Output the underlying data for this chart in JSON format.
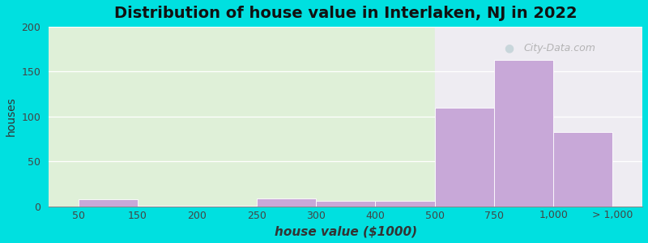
{
  "title": "Distribution of house value in Interlaken, NJ in 2022",
  "xlabel": "house value ($1000)",
  "ylabel": "houses",
  "tick_labels": [
    "50",
    "150",
    "200",
    "250",
    "300",
    "400",
    "500",
    "750",
    "1,000",
    "> 1,000"
  ],
  "bar_values": [
    8,
    1,
    1,
    9,
    6,
    6,
    110,
    163,
    83
  ],
  "bar_color": "#c8a8d8",
  "background_color": "#00e0e0",
  "plot_bg_left": "#dff0d8",
  "plot_bg_right": "#eeecf2",
  "ylim": [
    0,
    200
  ],
  "yticks": [
    0,
    50,
    100,
    150,
    200
  ],
  "title_fontsize": 14,
  "axis_fontsize": 10,
  "watermark": "City-Data.com",
  "green_split_index": 6
}
